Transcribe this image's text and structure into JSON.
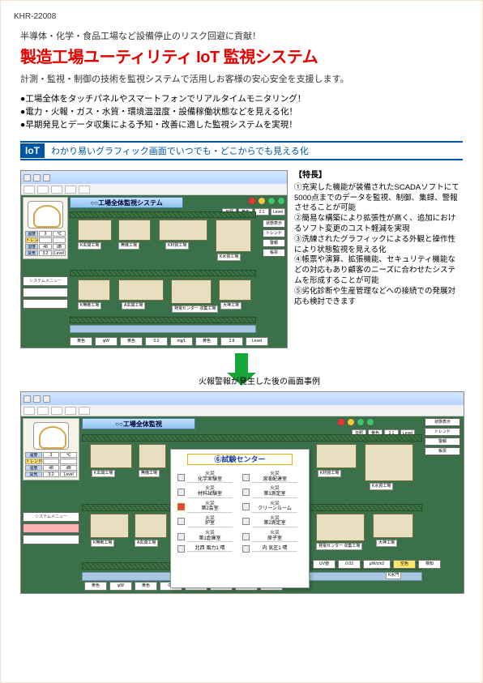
{
  "doc_id": "KHR-22008",
  "subhead": "半導体・化学・食品工場など設備停止のリスク回避に貢献！",
  "title": "製造工場ユーティリティ IoT 監視システム",
  "lead": "計測・監視・制御の技術を監視システムで活用しお客様の安心安全を支援します。",
  "bullets": [
    "●工場全体をタッチパネルやスマートフォンでリアルタイムモニタリング！",
    "●電力・火報・ガス・水質・環境温湿度・設備稼働状態などを見える化！",
    "●早期発見とデータ収集による予知・改善に適した監視システムを実現！"
  ],
  "iot": {
    "badge": "IoT",
    "text": "わかり易いグラフィック画面でいつでも・どこからでも見える化"
  },
  "features_title": "【特長】",
  "features": [
    "①充実した機能が装備されたSCADAソフトにて5000点までのデータを監視、制御、集録、警報させることが可能",
    "②簡易な構築により拡張性が高く、追加におけるソフト変更のコスト軽減を実現",
    "③洗練されたグラフィックによる外観と操作性により状態監視を見える化",
    "④帳票や演算、拡張機能、セキュリティ機能などの対応もあり顧客のニーズに合わせたシステムを形成することが可能",
    "⑤劣化診断や生産管理などへの接続での発展対応も検討できます"
  ],
  "arrow_caption": "火報警報が発生した後の画面事例",
  "scada": {
    "banner_top": "○○工場全体監視システム",
    "banner_bot": "○○工場全体監視",
    "gauge_rows": [
      [
        "温度",
        "3",
        "℃"
      ],
      [
        "トレンド傾向",
        "",
        ""
      ],
      [
        "湿度",
        "48",
        "dB"
      ],
      [
        "臭気",
        "3.2",
        "Level"
      ]
    ],
    "side_buttons": [
      "システムメニュー",
      "",
      ""
    ],
    "status_vals": [
      "日照",
      "黄色",
      "2.1",
      "Level"
    ],
    "right_buttons": [
      "状態表示",
      "トレンド",
      "警報",
      "帳票"
    ],
    "bldg_labels": [
      "K玄関工場",
      "無機工場",
      "K材質工場",
      "K水質工場",
      "K無断工場",
      "A玄関工場",
      "大神工場",
      "発電センター 収集工場",
      "K水門"
    ],
    "bottom_bar": [
      "黄色",
      "φW",
      "黄色",
      "0.0",
      "mg/L",
      "黄色",
      "2.8",
      "Level"
    ],
    "uv_bar": [
      "UV値",
      "0.02",
      "μW/cm2",
      "空色",
      "検知"
    ]
  },
  "dialog": {
    "title": "⑥試験センター",
    "cells": [
      {
        "hot": false,
        "cap": "火災\\n化学実験室"
      },
      {
        "hot": false,
        "cap": "火災\\n溶液配達室"
      },
      {
        "hot": false,
        "cap": "火災\\n材料試験室"
      },
      {
        "hot": false,
        "cap": "火災\\n第1測定室"
      },
      {
        "hot": true,
        "cap": "火災\\n第2会室"
      },
      {
        "hot": false,
        "cap": "火災\\nクリーンルーム"
      },
      {
        "hot": false,
        "cap": "火災\\n炉室"
      },
      {
        "hot": false,
        "cap": "火災\\n第2測定室"
      },
      {
        "hot": false,
        "cap": "火災\\n第1倉庫室"
      },
      {
        "hot": false,
        "cap": "火災\\n原子室"
      },
      {
        "hot": false,
        "cap": "北西 風力1 晴"
      },
      {
        "hot": false,
        "cap": "内 気圧1 晴"
      }
    ]
  }
}
